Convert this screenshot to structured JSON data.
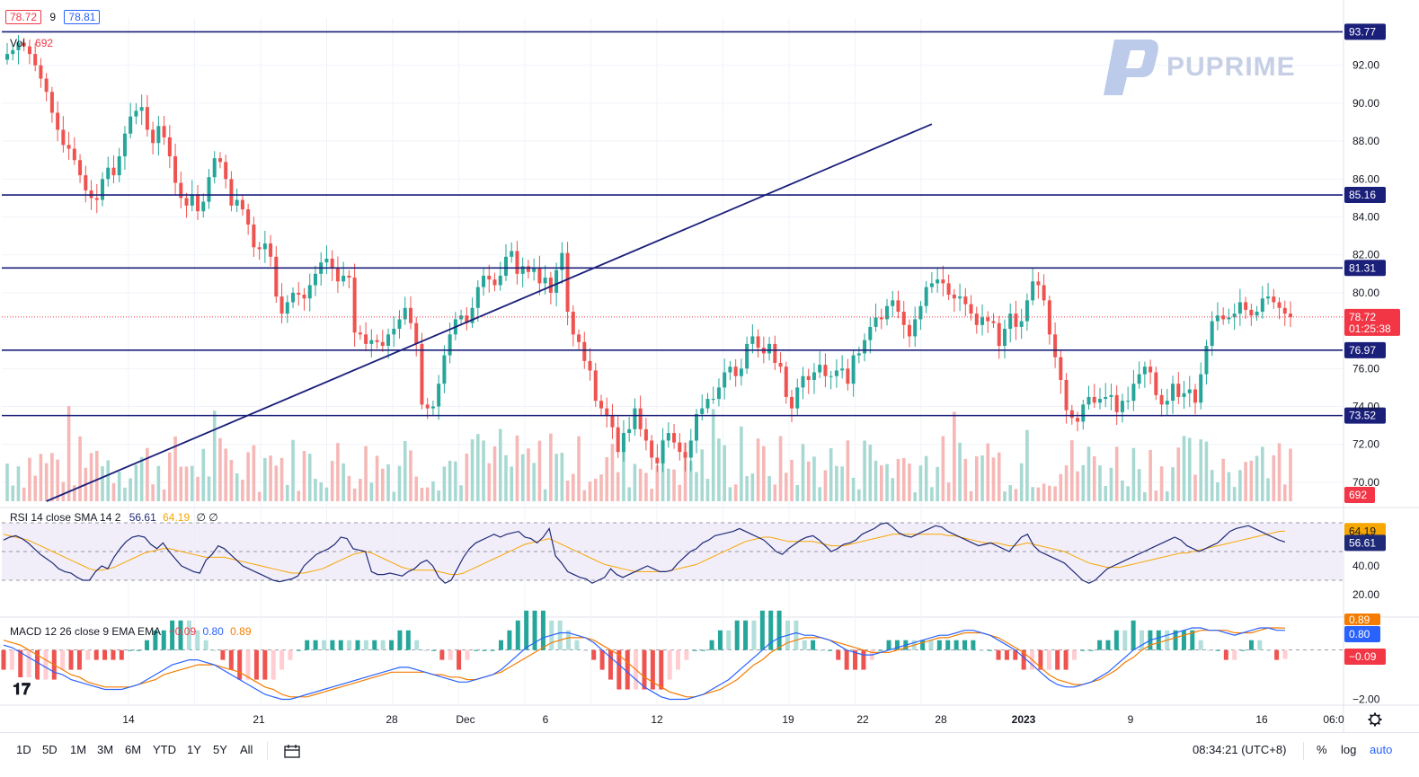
{
  "header": {
    "price_close": "78.72",
    "spread": "9",
    "price_ask": "78.81",
    "vol_label": "Vol",
    "vol_value": "692",
    "rsi_label": "RSI 14 close SMA 14 2",
    "rsi_value": "56.61",
    "rsi_sma_value": "64.19",
    "rsi_extra": "∅ ∅",
    "macd_label": "MACD 12 26 close 9 EMA EMA",
    "macd_hist": "−0.09",
    "macd_line": "0.80",
    "macd_signal": "0.89"
  },
  "watermark": {
    "brand": "PUPRIME"
  },
  "price_axis": {
    "ticks": [
      "92.00",
      "90.00",
      "88.00",
      "86.00",
      "84.00",
      "82.00",
      "80.00",
      "76.00",
      "74.00",
      "72.00",
      "70.00"
    ],
    "levels": [
      {
        "value": 93.77,
        "label": "93.77"
      },
      {
        "value": 85.16,
        "label": "85.16"
      },
      {
        "value": 81.31,
        "label": "81.31"
      },
      {
        "value": 76.97,
        "label": "76.97"
      },
      {
        "value": 73.52,
        "label": "73.52"
      }
    ],
    "current_price": "78.72",
    "countdown": "01:25:38",
    "volume_badge": "692"
  },
  "rsi_axis": {
    "ticks": [
      "40.00",
      "20.00"
    ],
    "sma_badge": "64.19",
    "rsi_badge": "56.61"
  },
  "macd_axis": {
    "ticks": [
      "−2.00"
    ],
    "signal_badge": "0.89",
    "macd_badge": "0.80",
    "hist_badge": "−0.09"
  },
  "time_axis": {
    "labels": [
      "14",
      "21",
      "28",
      "Dec",
      "6",
      "12",
      "19",
      "22",
      "28",
      "2023",
      "9",
      "16",
      "06:0"
    ]
  },
  "toolbar": {
    "ranges": [
      "1D",
      "5D",
      "1M",
      "3M",
      "6M",
      "YTD",
      "1Y",
      "5Y",
      "All"
    ],
    "clock": "08:34:21 (UTC+8)",
    "percent": "%",
    "log": "log",
    "auto": "auto"
  },
  "chart_data": {
    "type": "candlestick",
    "price_range": [
      69,
      94.5
    ],
    "horizontal_levels": [
      93.77,
      85.16,
      81.31,
      76.97,
      73.52
    ],
    "trendline": {
      "from": [
        7,
        69
      ],
      "to": [
        165,
        88.9
      ]
    },
    "current_price": 78.72,
    "closes": [
      92.6,
      92.8,
      93.2,
      93.0,
      92.6,
      92.0,
      91.3,
      90.6,
      89.5,
      88.6,
      87.8,
      87.6,
      87.0,
      86.2,
      85.4,
      85.0,
      84.9,
      86.0,
      86.6,
      86.2,
      87.2,
      88.4,
      89.3,
      89.6,
      89.8,
      88.6,
      87.9,
      88.8,
      88.2,
      87.2,
      85.8,
      85.0,
      84.6,
      85.2,
      84.3,
      84.8,
      86.1,
      87.1,
      86.9,
      86.0,
      84.6,
      84.9,
      84.4,
      83.6,
      82.4,
      82.3,
      82.6,
      81.9,
      79.8,
      78.9,
      79.5,
      80.0,
      79.9,
      79.7,
      80.4,
      81.0,
      81.6,
      81.8,
      81.3,
      80.6,
      80.9,
      80.8,
      77.9,
      77.8,
      77.3,
      77.5,
      77.4,
      77.2,
      77.8,
      78.1,
      78.6,
      79.2,
      78.4,
      77.3,
      74.1,
      73.9,
      74.0,
      75.2,
      76.7,
      77.8,
      78.6,
      78.8,
      78.4,
      79.2,
      80.3,
      80.9,
      80.7,
      80.4,
      80.9,
      81.9,
      82.2,
      81.0,
      81.4,
      81.1,
      81.3,
      80.5,
      80.8,
      80.0,
      81.2,
      82.1,
      79.0,
      77.8,
      77.4,
      76.4,
      75.9,
      74.3,
      73.9,
      73.5,
      72.9,
      71.6,
      72.6,
      72.8,
      73.9,
      72.8,
      72.2,
      71.3,
      71.0,
      72.2,
      72.6,
      72.1,
      71.6,
      71.3,
      72.2,
      73.6,
      73.9,
      74.4,
      74.4,
      75.0,
      75.8,
      76.1,
      75.6,
      76.0,
      77.3,
      77.7,
      77.1,
      76.8,
      77.3,
      76.3,
      76.1,
      74.5,
      73.9,
      75.0,
      75.6,
      75.4,
      75.8,
      76.2,
      75.6,
      75.6,
      75.9,
      76.0,
      75.2,
      76.7,
      76.8,
      77.5,
      78.2,
      78.7,
      78.6,
      79.3,
      79.6,
      79.0,
      78.3,
      77.7,
      78.6,
      79.3,
      80.3,
      80.5,
      80.7,
      80.5,
      79.9,
      79.7,
      79.8,
      79.4,
      78.9,
      78.3,
      78.7,
      78.5,
      78.4,
      77.2,
      78.1,
      78.9,
      78.2,
      78.5,
      79.6,
      80.6,
      80.4,
      79.6,
      77.8,
      76.6,
      75.4,
      73.8,
      73.4,
      73.2,
      74.1,
      74.5,
      74.2,
      74.4,
      74.5,
      74.6,
      73.7,
      74.3,
      74.3,
      75.2,
      75.7,
      76.1,
      75.8,
      74.6,
      74.1,
      74.3,
      75.2,
      74.5,
      74.7,
      74.9,
      74.2,
      75.7,
      77.2,
      78.5,
      78.8,
      78.6,
      78.7,
      78.9,
      79.5,
      79.1,
      78.8,
      79.0,
      79.7,
      79.8,
      79.5,
      79.2,
      78.9,
      78.72
    ],
    "rsi": [
      58,
      60,
      61,
      59,
      56,
      52,
      48,
      45,
      42,
      38,
      36,
      35,
      32,
      30,
      30,
      36,
      40,
      38,
      46,
      52,
      57,
      60,
      61,
      60,
      55,
      52,
      56,
      50,
      45,
      40,
      38,
      36,
      35,
      44,
      48,
      54,
      52,
      48,
      44,
      40,
      38,
      36,
      34,
      32,
      30,
      29,
      30,
      31,
      33,
      40,
      44,
      48,
      50,
      52,
      55,
      60,
      59,
      52,
      51,
      50,
      36,
      34,
      34,
      35,
      34,
      33,
      36,
      38,
      42,
      44,
      40,
      32,
      28,
      30,
      38,
      46,
      52,
      56,
      58,
      60,
      62,
      60,
      62,
      63,
      64,
      60,
      59,
      56,
      60,
      66,
      47,
      42,
      36,
      34,
      32,
      31,
      28,
      30,
      32,
      38,
      34,
      32,
      34,
      36,
      38,
      40,
      38,
      36,
      36,
      37,
      42,
      46,
      50,
      52,
      56,
      58,
      61,
      62,
      63,
      64,
      66,
      64,
      62,
      60,
      58,
      54,
      50,
      48,
      52,
      55,
      58,
      60,
      61,
      58,
      54,
      50,
      52,
      55,
      56,
      58,
      62,
      64,
      66,
      69,
      70,
      67,
      63,
      61,
      60,
      62,
      64,
      66,
      68,
      67,
      64,
      62,
      60,
      58,
      56,
      54,
      55,
      56,
      54,
      52,
      50,
      55,
      60,
      62,
      54,
      50,
      48,
      46,
      44,
      42,
      38,
      34,
      30,
      28,
      30,
      34,
      38,
      40,
      42,
      44,
      46,
      48,
      50,
      52,
      54,
      56,
      58,
      60,
      58,
      54,
      52,
      50,
      52,
      54,
      56,
      60,
      64,
      66,
      67,
      68,
      66,
      64,
      62,
      60,
      58,
      56.61
    ],
    "rsi_sma": [
      62,
      61,
      60,
      59,
      58,
      56,
      54,
      52,
      50,
      48,
      46,
      44,
      42,
      40,
      38,
      37,
      37,
      38,
      39,
      41,
      43,
      45,
      47,
      49,
      50,
      51,
      52,
      52,
      51,
      50,
      49,
      48,
      47,
      46,
      46,
      46,
      46,
      45,
      44,
      43,
      42,
      41,
      40,
      39,
      38,
      37,
      36,
      35,
      35,
      35,
      36,
      37,
      38,
      40,
      42,
      44,
      46,
      48,
      49,
      50,
      49,
      47,
      45,
      43,
      41,
      39,
      38,
      37,
      37,
      37,
      37,
      36,
      35,
      34,
      34,
      35,
      37,
      39,
      41,
      43,
      45,
      47,
      49,
      51,
      53,
      55,
      56,
      57,
      58,
      59,
      57,
      55,
      53,
      51,
      49,
      47,
      45,
      43,
      41,
      40,
      39,
      38,
      37,
      36,
      36,
      36,
      36,
      36,
      36,
      37,
      38,
      39,
      40,
      41,
      43,
      45,
      47,
      49,
      51,
      53,
      55,
      57,
      58,
      59,
      60,
      60,
      59,
      58,
      57,
      57,
      57,
      57,
      57,
      56,
      55,
      54,
      54,
      54,
      55,
      56,
      57,
      58,
      59,
      60,
      61,
      62,
      62,
      62,
      62,
      62,
      62,
      62,
      62,
      62,
      61,
      61,
      60,
      59,
      58,
      57,
      56,
      56,
      56,
      55,
      54,
      54,
      55,
      56,
      55,
      54,
      53,
      52,
      51,
      50,
      48,
      46,
      44,
      42,
      41,
      40,
      39,
      39,
      39,
      40,
      41,
      42,
      43,
      44,
      45,
      46,
      47,
      48,
      49,
      49,
      50,
      51,
      52,
      53,
      54,
      55,
      56,
      57,
      58,
      59,
      60,
      61,
      62,
      63,
      64,
      64.19
    ],
    "macd": [
      0.2,
      0.1,
      -0.1,
      -0.3,
      -0.5,
      -0.7,
      -0.9,
      -1.0,
      -1.2,
      -1.3,
      -1.4,
      -1.5,
      -1.6,
      -1.6,
      -1.6,
      -1.5,
      -1.4,
      -1.2,
      -1.0,
      -0.8,
      -0.6,
      -0.5,
      -0.4,
      -0.4,
      -0.5,
      -0.6,
      -0.8,
      -1.0,
      -1.2,
      -1.4,
      -1.6,
      -1.8,
      -1.9,
      -2.0,
      -2.0,
      -1.9,
      -1.8,
      -1.7,
      -1.6,
      -1.5,
      -1.4,
      -1.3,
      -1.2,
      -1.1,
      -1.0,
      -0.9,
      -0.8,
      -0.7,
      -0.7,
      -0.8,
      -0.9,
      -1.0,
      -1.1,
      -1.2,
      -1.3,
      -1.3,
      -1.2,
      -1.1,
      -1.0,
      -0.8,
      -0.5,
      -0.2,
      0.1,
      0.3,
      0.5,
      0.6,
      0.7,
      0.7,
      0.6,
      0.5,
      0.3,
      0.0,
      -0.3,
      -0.6,
      -0.9,
      -1.2,
      -1.5,
      -1.7,
      -1.9,
      -2.0,
      -2.0,
      -2.0,
      -1.9,
      -1.8,
      -1.6,
      -1.4,
      -1.2,
      -0.9,
      -0.6,
      -0.3,
      0.0,
      0.3,
      0.5,
      0.6,
      0.7,
      0.6,
      0.6,
      0.5,
      0.4,
      0.2,
      0.0,
      -0.1,
      -0.2,
      -0.2,
      -0.1,
      0.0,
      0.1,
      0.2,
      0.3,
      0.4,
      0.5,
      0.6,
      0.6,
      0.7,
      0.8,
      0.8,
      0.7,
      0.6,
      0.4,
      0.2,
      0.0,
      -0.3,
      -0.6,
      -0.9,
      -1.2,
      -1.4,
      -1.5,
      -1.5,
      -1.4,
      -1.3,
      -1.1,
      -0.9,
      -0.6,
      -0.3,
      0.0,
      0.2,
      0.4,
      0.5,
      0.6,
      0.7,
      0.8,
      0.9,
      0.9,
      0.8,
      0.8,
      0.7,
      0.6,
      0.7,
      0.8,
      0.9,
      0.9,
      0.8,
      0.8
    ],
    "macd_signal": [
      0.4,
      0.3,
      0.2,
      0.0,
      -0.2,
      -0.4,
      -0.6,
      -0.8,
      -1.0,
      -1.1,
      -1.3,
      -1.4,
      -1.5,
      -1.5,
      -1.5,
      -1.5,
      -1.4,
      -1.3,
      -1.2,
      -1.0,
      -0.9,
      -0.8,
      -0.7,
      -0.6,
      -0.6,
      -0.6,
      -0.7,
      -0.8,
      -0.9,
      -1.1,
      -1.3,
      -1.5,
      -1.6,
      -1.8,
      -1.9,
      -1.9,
      -1.9,
      -1.8,
      -1.7,
      -1.6,
      -1.5,
      -1.4,
      -1.3,
      -1.2,
      -1.1,
      -1.0,
      -0.9,
      -0.9,
      -0.9,
      -0.9,
      -0.9,
      -1.0,
      -1.0,
      -1.1,
      -1.1,
      -1.2,
      -1.2,
      -1.1,
      -1.0,
      -0.9,
      -0.7,
      -0.5,
      -0.3,
      -0.1,
      0.1,
      0.3,
      0.4,
      0.5,
      0.5,
      0.5,
      0.4,
      0.2,
      0.0,
      -0.2,
      -0.5,
      -0.8,
      -1.1,
      -1.3,
      -1.5,
      -1.7,
      -1.8,
      -1.9,
      -1.9,
      -1.8,
      -1.7,
      -1.6,
      -1.4,
      -1.2,
      -0.9,
      -0.6,
      -0.4,
      -0.1,
      0.1,
      0.3,
      0.4,
      0.5,
      0.5,
      0.5,
      0.4,
      0.3,
      0.2,
      0.1,
      0.0,
      -0.1,
      -0.1,
      -0.1,
      0.0,
      0.1,
      0.2,
      0.3,
      0.4,
      0.5,
      0.5,
      0.6,
      0.7,
      0.7,
      0.7,
      0.6,
      0.5,
      0.3,
      0.1,
      -0.1,
      -0.4,
      -0.7,
      -1.0,
      -1.2,
      -1.3,
      -1.4,
      -1.4,
      -1.3,
      -1.2,
      -1.0,
      -0.8,
      -0.5,
      -0.3,
      0.0,
      0.2,
      0.3,
      0.4,
      0.5,
      0.6,
      0.7,
      0.8,
      0.8,
      0.8,
      0.8,
      0.7,
      0.7,
      0.7,
      0.8,
      0.9,
      0.9,
      0.89
    ]
  }
}
